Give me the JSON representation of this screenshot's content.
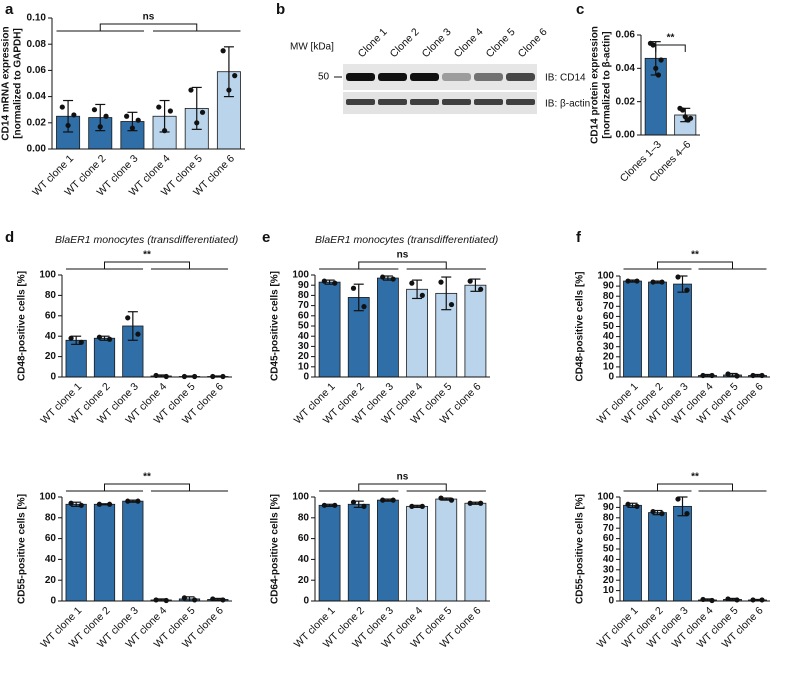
{
  "chart_data": [
    {
      "type": "bar",
      "panel": "a",
      "ylabel": [
        "CD14 mRNA expression",
        "[normalized to GAPDH]"
      ],
      "categories": [
        "WT clone 1",
        "WT clone 2",
        "WT clone 3",
        "WT clone 4",
        "WT clone 5",
        "WT clone 6"
      ],
      "values": [
        0.025,
        0.024,
        0.021,
        0.025,
        0.031,
        0.059
      ],
      "errors": [
        0.012,
        0.01,
        0.007,
        0.012,
        0.016,
        0.019
      ],
      "points": [
        [
          0.032,
          0.018,
          0.026
        ],
        [
          0.03,
          0.017,
          0.025
        ],
        [
          0.025,
          0.016,
          0.022
        ],
        [
          0.032,
          0.014,
          0.029
        ],
        [
          0.045,
          0.02,
          0.028
        ],
        [
          0.075,
          0.045,
          0.056
        ]
      ],
      "colors": [
        "#2f6ea6",
        "#2f6ea6",
        "#2f6ea6",
        "#b9d4eb",
        "#b9d4eb",
        "#b9d4eb"
      ],
      "ylim": [
        0,
        0.1
      ],
      "yticks": [
        {
          "value": 0,
          "label": "0.00"
        },
        0.02,
        0.04,
        0.06,
        0.08,
        {
          "value": 0.1,
          "label": "0.10"
        }
      ],
      "significance": "ns"
    },
    {
      "type": "bar",
      "panel": "c",
      "ylabel": [
        "CD14 protein expression",
        "[normalized to β-actin]"
      ],
      "categories": [
        "Clones 1–3",
        "Clones 4–6"
      ],
      "values": [
        0.046,
        0.012
      ],
      "errors": [
        0.01,
        0.004
      ],
      "points": [
        [
          0.055,
          0.054,
          0.04,
          0.036,
          0.045
        ],
        [
          0.016,
          0.015,
          0.011,
          0.009,
          0.01
        ]
      ],
      "colors": [
        "#2f6ea6",
        "#b9d4eb"
      ],
      "ylim": [
        0,
        0.06
      ],
      "yticks": [
        {
          "value": 0,
          "label": "0.00"
        },
        0.02,
        0.04,
        0.06
      ],
      "significance": "**"
    },
    {
      "type": "bar",
      "panel": "d",
      "subtitle": "BlaER1 monocytes (transdifferentiated)",
      "ylabel": [
        "CD48-positive cells [%]"
      ],
      "categories": [
        "WT clone 1",
        "WT clone 2",
        "WT clone 3",
        "WT clone 4",
        "WT clone 5",
        "WT clone 6"
      ],
      "values": [
        36,
        38,
        50,
        1,
        0.5,
        0.5
      ],
      "errors": [
        4,
        2,
        14,
        1,
        0.5,
        0.5
      ],
      "points": [
        [
          38,
          34
        ],
        [
          39,
          37
        ],
        [
          58,
          42
        ],
        [
          1.5,
          0.5
        ],
        [
          0.5,
          0.5
        ],
        [
          0.5,
          0.5
        ]
      ],
      "colors": [
        "#2f6ea6",
        "#2f6ea6",
        "#2f6ea6",
        "#2f6ea6",
        "#2f6ea6",
        "#2f6ea6"
      ],
      "ylim": [
        0,
        100
      ],
      "yticks": [
        0,
        20,
        40,
        60,
        80,
        100
      ],
      "significance": "**"
    },
    {
      "type": "bar",
      "ylabel": [
        "CD55-positive cells [%]"
      ],
      "categories": [
        "WT clone 1",
        "WT clone 2",
        "WT clone 3",
        "WT clone 4",
        "WT clone 5",
        "WT clone 6"
      ],
      "values": [
        93,
        93,
        96,
        1,
        2,
        1.5
      ],
      "errors": [
        2,
        0.5,
        1,
        1,
        2,
        1
      ],
      "points": [
        [
          94,
          92
        ],
        [
          93,
          93
        ],
        [
          96,
          96
        ],
        [
          1,
          0.5
        ],
        [
          3,
          1
        ],
        [
          2,
          1
        ]
      ],
      "colors": [
        "#2f6ea6",
        "#2f6ea6",
        "#2f6ea6",
        "#2f6ea6",
        "#2f6ea6",
        "#2f6ea6"
      ],
      "ylim": [
        0,
        100
      ],
      "yticks": [
        0,
        20,
        40,
        60,
        80,
        100
      ],
      "significance": "**"
    },
    {
      "type": "bar",
      "panel": "e",
      "subtitle": "BlaER1 monocytes (transdifferentiated)",
      "ylabel": [
        "CD45-positive cells [%]"
      ],
      "categories": [
        "WT clone 1",
        "WT clone 2",
        "WT clone 3",
        "WT clone 4",
        "WT clone 5",
        "WT clone 6"
      ],
      "values": [
        93,
        78,
        97,
        86,
        82,
        90
      ],
      "errors": [
        2,
        13,
        2,
        9,
        16,
        6
      ],
      "points": [
        [
          94,
          92
        ],
        [
          87,
          69
        ],
        [
          98,
          96
        ],
        [
          92,
          80
        ],
        [
          93,
          71
        ],
        [
          94,
          86
        ]
      ],
      "colors": [
        "#2f6ea6",
        "#2f6ea6",
        "#2f6ea6",
        "#b9d4eb",
        "#b9d4eb",
        "#b9d4eb"
      ],
      "ylim": [
        0,
        100
      ],
      "yticks": [
        0,
        10,
        20,
        30,
        40,
        50,
        60,
        70,
        80,
        90,
        100
      ],
      "significance": "ns"
    },
    {
      "type": "bar",
      "ylabel": [
        "CD64-positive cells [%]"
      ],
      "categories": [
        "WT clone 1",
        "WT clone 2",
        "WT clone 3",
        "WT clone 4",
        "WT clone 5",
        "WT clone 6"
      ],
      "values": [
        92,
        93,
        97,
        91,
        98,
        94
      ],
      "errors": [
        1,
        3,
        1,
        1,
        1,
        1
      ],
      "points": [
        [
          92,
          92
        ],
        [
          95,
          91
        ],
        [
          97,
          97
        ],
        [
          91,
          91
        ],
        [
          99,
          97
        ],
        [
          94,
          94
        ]
      ],
      "colors": [
        "#2f6ea6",
        "#2f6ea6",
        "#2f6ea6",
        "#b9d4eb",
        "#b9d4eb",
        "#b9d4eb"
      ],
      "ylim": [
        0,
        100
      ],
      "yticks": [
        0,
        20,
        40,
        60,
        80,
        100
      ],
      "significance": "ns"
    },
    {
      "type": "bar",
      "panel": "f",
      "ylabel": [
        "CD48-positive cells [%]"
      ],
      "categories": [
        "WT clone 1",
        "WT clone 2",
        "WT clone 3",
        "WT clone 4",
        "WT clone 5",
        "WT clone 6"
      ],
      "values": [
        95,
        94,
        92,
        1.5,
        2,
        1.5
      ],
      "errors": [
        1,
        1,
        8,
        1,
        1.5,
        1
      ],
      "points": [
        [
          95,
          95
        ],
        [
          94,
          94
        ],
        [
          99,
          86
        ],
        [
          1.5,
          1.5
        ],
        [
          3,
          1
        ],
        [
          1.5,
          1.5
        ]
      ],
      "colors": [
        "#2f6ea6",
        "#2f6ea6",
        "#2f6ea6",
        "#2f6ea6",
        "#2f6ea6",
        "#2f6ea6"
      ],
      "ylim": [
        0,
        100
      ],
      "yticks": [
        0,
        10,
        20,
        30,
        40,
        50,
        60,
        70,
        80,
        90,
        100
      ],
      "significance": "**"
    },
    {
      "type": "bar",
      "ylabel": [
        "CD55-positive cells [%]"
      ],
      "categories": [
        "WT clone 1",
        "WT clone 2",
        "WT clone 3",
        "WT clone 4",
        "WT clone 5",
        "WT clone 6"
      ],
      "values": [
        92,
        85,
        91,
        1,
        1.5,
        1
      ],
      "errors": [
        2,
        2,
        9,
        1,
        1,
        0.5
      ],
      "points": [
        [
          93,
          91
        ],
        [
          86,
          84
        ],
        [
          98,
          84
        ],
        [
          1.5,
          0.5
        ],
        [
          2,
          1
        ],
        [
          1,
          1
        ]
      ],
      "colors": [
        "#2f6ea6",
        "#2f6ea6",
        "#2f6ea6",
        "#2f6ea6",
        "#2f6ea6",
        "#2f6ea6"
      ],
      "ylim": [
        0,
        100
      ],
      "yticks": [
        0,
        10,
        20,
        30,
        40,
        50,
        60,
        70,
        80,
        90,
        100
      ],
      "significance": "**"
    }
  ],
  "blot": {
    "panel": "b",
    "mw_label": "MW [kDa]",
    "mw_marker": "50",
    "lanes": [
      "Clone 1",
      "Clone 2",
      "Clone 3",
      "Clone 4",
      "Clone 5",
      "Clone 6"
    ],
    "rows": [
      "IB: CD14",
      "IB: β-actin"
    ]
  }
}
